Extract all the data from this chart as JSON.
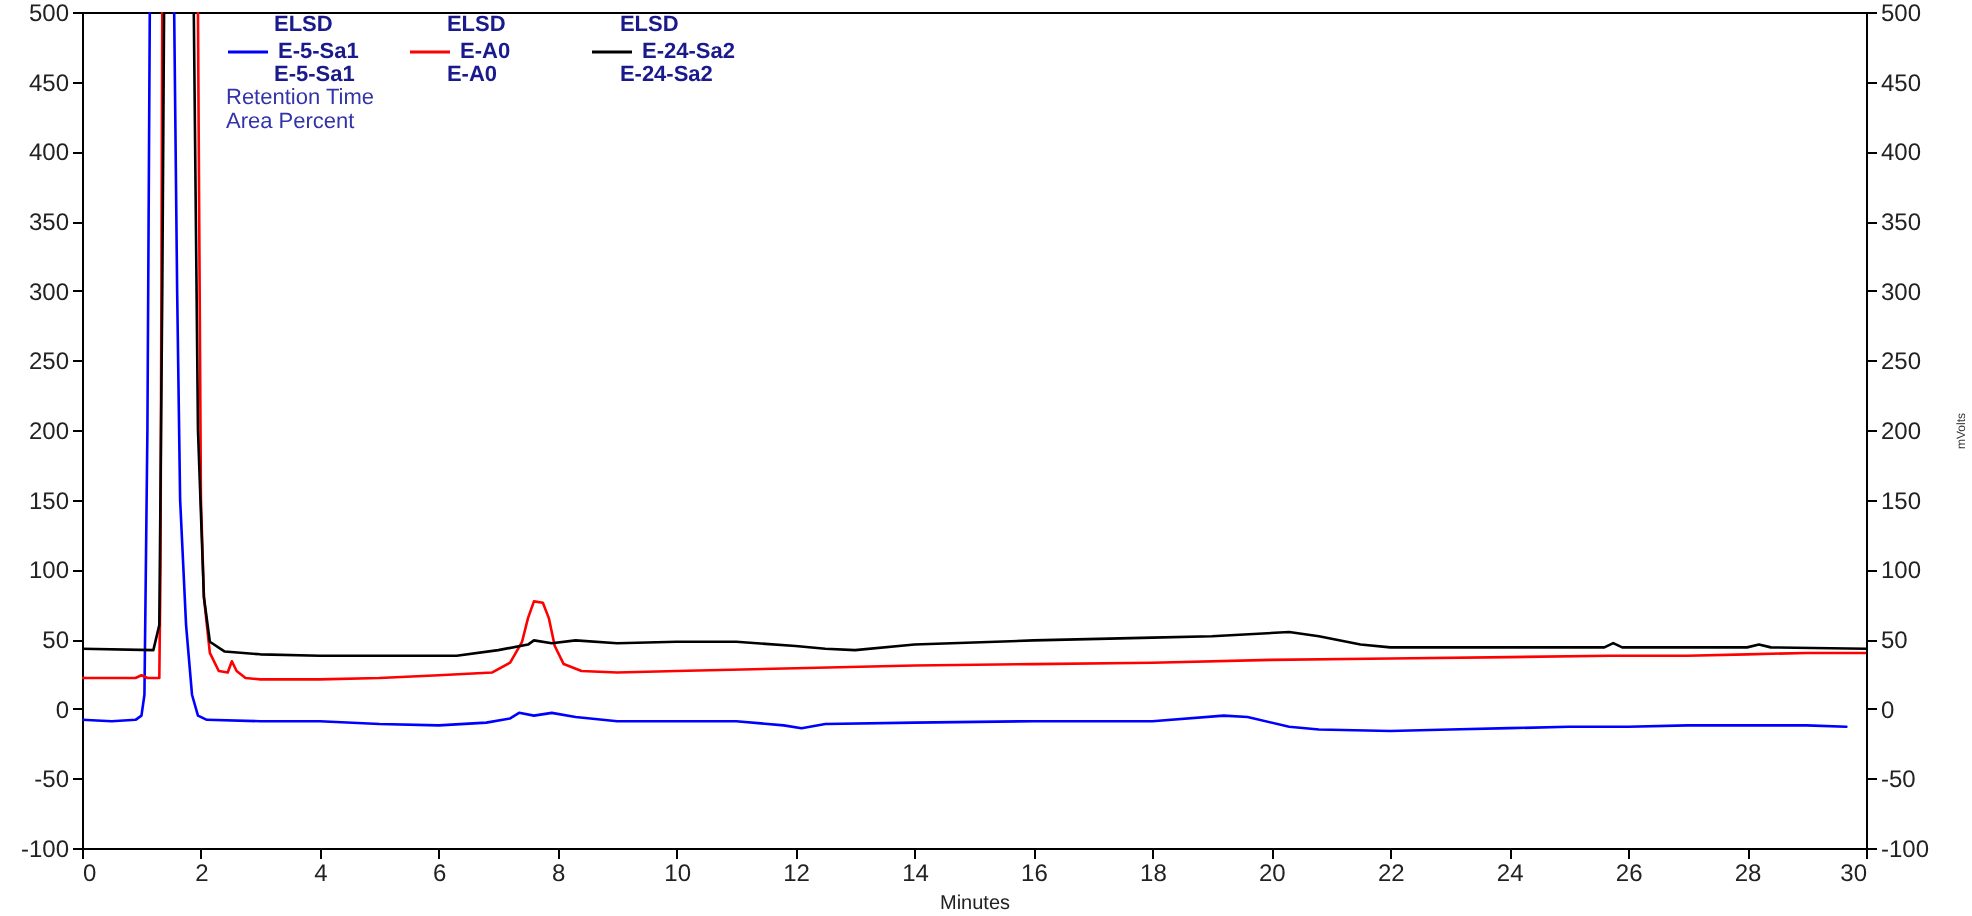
{
  "chart_data": {
    "type": "line",
    "xlabel": "Minutes",
    "y2label": "mVolts",
    "annotations": [
      "ELSD",
      "ELSD",
      "ELSD",
      "E-5-Sa1",
      "E-A0",
      "E-24-Sa2",
      "Retention Time",
      "Area Percent"
    ],
    "xlim": [
      0,
      30
    ],
    "xticks": [
      0,
      2,
      4,
      6,
      8,
      10,
      12,
      14,
      16,
      18,
      20,
      22,
      24,
      26,
      28,
      30
    ],
    "ylim": [
      -100,
      500
    ],
    "yticks": [
      -100,
      -50,
      0,
      50,
      100,
      150,
      200,
      250,
      300,
      350,
      400,
      450,
      500
    ],
    "y2lim": [
      -100,
      500
    ],
    "y2ticks": [
      -100,
      -50,
      0,
      50,
      100,
      150,
      200,
      250,
      300,
      350,
      400,
      450,
      500
    ],
    "legend": "top left",
    "grid": false,
    "series": [
      {
        "name": "E-5-Sa1",
        "color": "#0000ff",
        "x": [
          0,
          0.5,
          0.9,
          1.0,
          1.05,
          1.1,
          1.14,
          1.35,
          1.55,
          1.6,
          1.65,
          1.75,
          1.85,
          1.95,
          2.1,
          3,
          4,
          5,
          6,
          6.8,
          7.2,
          7.35,
          7.6,
          7.9,
          8.3,
          9,
          10,
          11,
          11.8,
          12.1,
          12.5,
          14,
          16,
          18,
          19.2,
          19.6,
          20.3,
          20.8,
          22,
          23,
          24,
          25,
          26,
          27,
          28,
          29,
          29.67
        ],
        "values": [
          -8,
          -9,
          -8,
          -5,
          10,
          200,
          500,
          null,
          500,
          300,
          150,
          60,
          10,
          -5,
          -8,
          -9,
          -9,
          -11,
          -12,
          -10,
          -7,
          -3,
          -5,
          -3,
          -6,
          -9,
          -9,
          -9,
          -12,
          -14,
          -11,
          -10,
          -9,
          -9,
          -5,
          -6,
          -13,
          -15,
          -16,
          -15,
          -14,
          -13,
          -13,
          -12,
          -12,
          -12,
          -13
        ]
      },
      {
        "name": "E-A0",
        "color": "#ff0000",
        "x": [
          0,
          0.9,
          1.0,
          1.1,
          1.3,
          1.32,
          1.35,
          1.65,
          1.95,
          2.0,
          2.05,
          2.15,
          2.3,
          2.45,
          2.52,
          2.6,
          2.75,
          3,
          4,
          5,
          6,
          6.9,
          7.2,
          7.4,
          7.5,
          7.6,
          7.75,
          7.85,
          7.95,
          8.1,
          8.4,
          9,
          10,
          12,
          14,
          16,
          18,
          20,
          22,
          24,
          25.7,
          27,
          28,
          29,
          30
        ],
        "values": [
          22,
          22,
          24,
          22,
          22,
          100,
          500,
          null,
          500,
          150,
          80,
          40,
          27,
          26,
          34,
          27,
          22,
          21,
          21,
          22,
          24,
          26,
          33,
          48,
          65,
          77,
          76,
          65,
          45,
          32,
          27,
          26,
          27,
          29,
          31,
          32,
          33,
          35,
          36,
          37,
          38,
          38,
          39,
          40,
          40
        ]
      },
      {
        "name": "E-24-Sa2",
        "color": "#000000",
        "x": [
          0,
          1.2,
          1.3,
          1.35,
          1.38,
          1.6,
          1.88,
          1.95,
          2.05,
          2.15,
          2.4,
          3,
          4,
          5,
          6.3,
          7,
          7.5,
          7.6,
          7.9,
          8.3,
          9,
          10,
          11,
          12,
          12.5,
          13,
          14,
          16,
          18,
          19,
          20.3,
          20.8,
          21.5,
          22,
          24,
          25.6,
          25.75,
          25.9,
          28,
          28.2,
          28.4,
          30
        ],
        "values": [
          43,
          42,
          60,
          300,
          500,
          null,
          500,
          200,
          80,
          48,
          41,
          39,
          38,
          38,
          38,
          42,
          46,
          49,
          47,
          49,
          47,
          48,
          48,
          45,
          43,
          42,
          46,
          49,
          51,
          52,
          55,
          52,
          46,
          44,
          44,
          44,
          47,
          44,
          44,
          46,
          44,
          43
        ]
      }
    ]
  }
}
